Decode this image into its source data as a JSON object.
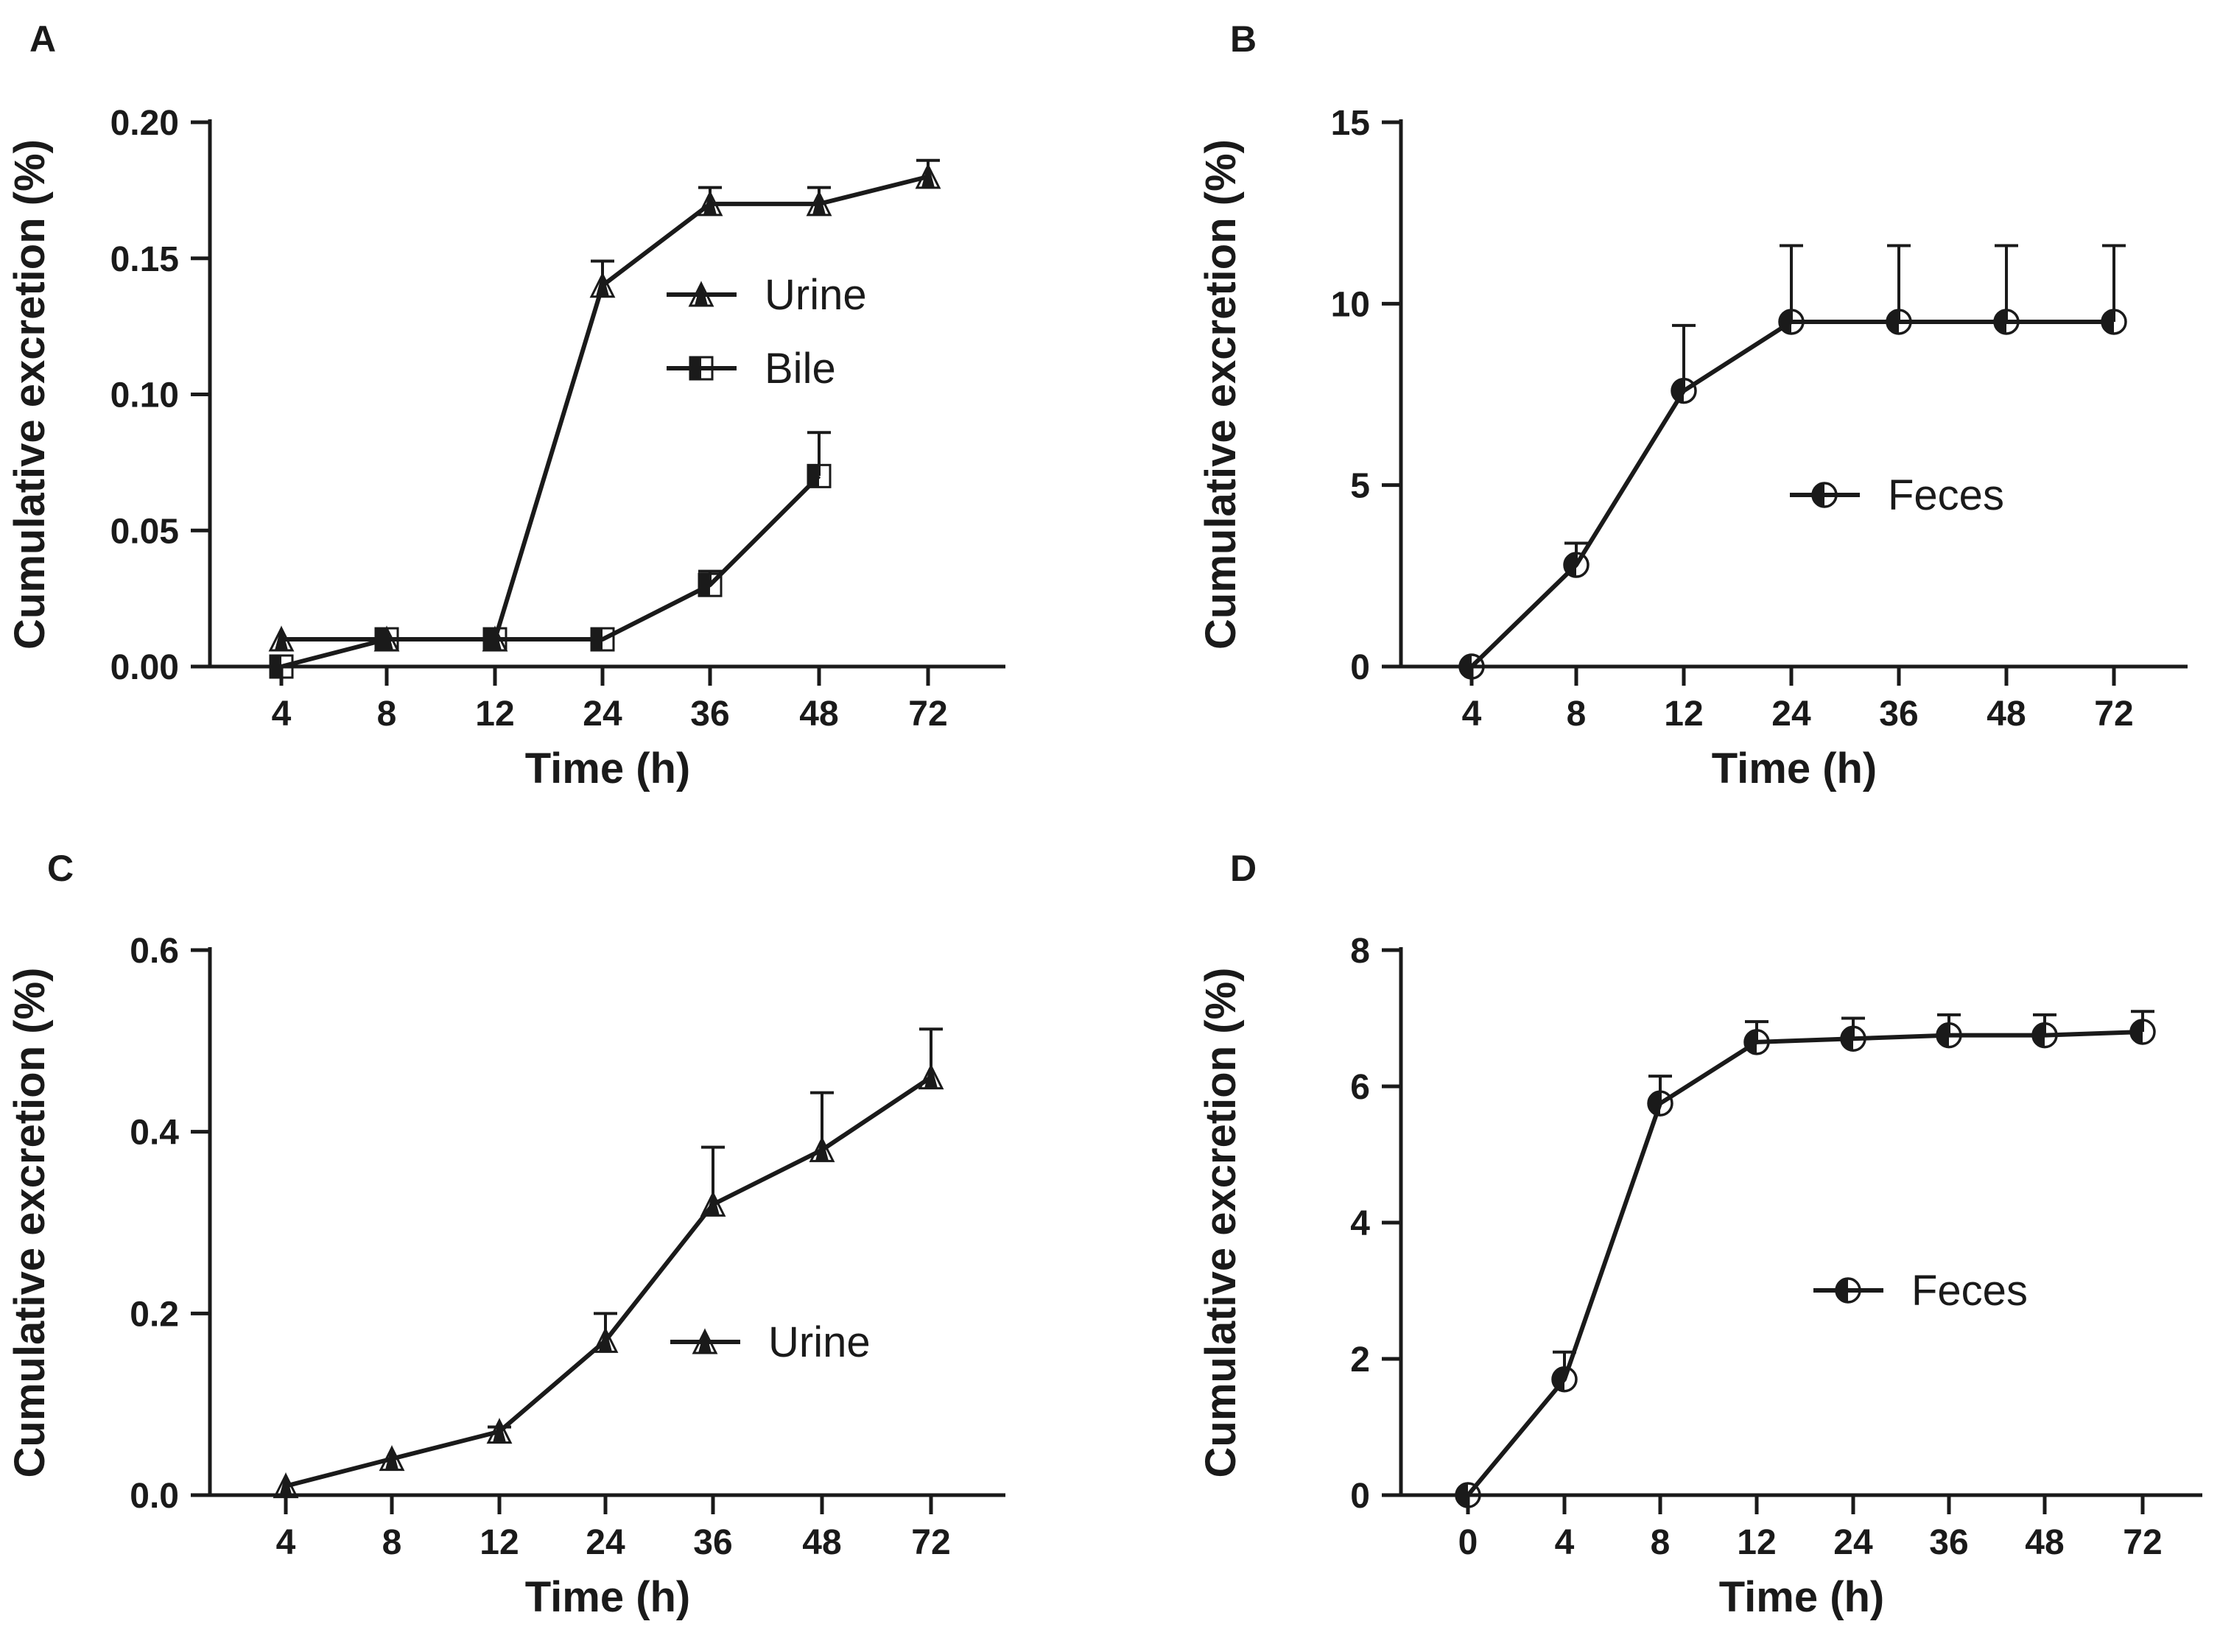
{
  "chart_data": [
    {
      "panel": "A",
      "type": "line",
      "xlabel": "Time (h)",
      "ylabel": "Cumulative excretion (%)",
      "categories": [
        "4",
        "8",
        "12",
        "24",
        "36",
        "48",
        "72"
      ],
      "ylim": [
        0,
        0.2
      ],
      "yticks": [
        "0.00",
        "0.05",
        "0.10",
        "0.15",
        "0.20"
      ],
      "legend_position": "center-right",
      "series": [
        {
          "name": "Urine",
          "marker": "triangle",
          "values": [
            0.01,
            0.01,
            0.01,
            0.14,
            0.17,
            0.17,
            0.18
          ],
          "errors": [
            0,
            0,
            0,
            0.009,
            0.006,
            0.006,
            0.006
          ]
        },
        {
          "name": "Bile",
          "marker": "square",
          "values": [
            0.0,
            0.01,
            0.01,
            0.01,
            0.03,
            0.07,
            null
          ],
          "errors": [
            0,
            0,
            0,
            0,
            0.005,
            0.016,
            null
          ]
        }
      ]
    },
    {
      "panel": "B",
      "type": "line",
      "xlabel": "Time (h)",
      "ylabel": "Cumulative excretion (%)",
      "categories": [
        "4",
        "8",
        "12",
        "24",
        "36",
        "48",
        "72"
      ],
      "ylim": [
        0,
        15
      ],
      "yticks": [
        "0",
        "5",
        "10",
        "15"
      ],
      "legend_position": "center-right",
      "series": [
        {
          "name": "Feces",
          "marker": "circle",
          "values": [
            0.0,
            2.8,
            7.6,
            9.5,
            9.5,
            9.5,
            9.5
          ],
          "errors": [
            0,
            0.6,
            1.8,
            2.1,
            2.1,
            2.1,
            2.1
          ]
        }
      ]
    },
    {
      "panel": "C",
      "type": "line",
      "xlabel": "Time (h)",
      "ylabel": "Cumulative excretion (%)",
      "categories": [
        "4",
        "8",
        "12",
        "24",
        "36",
        "48",
        "72"
      ],
      "ylim": [
        0,
        0.6
      ],
      "yticks": [
        "0.0",
        "0.2",
        "0.4",
        "0.6"
      ],
      "legend_position": "center-right",
      "series": [
        {
          "name": "Urine",
          "marker": "triangle",
          "values": [
            0.01,
            0.04,
            0.07,
            0.17,
            0.32,
            0.38,
            0.46
          ],
          "errors": [
            0,
            0,
            0.005,
            0.03,
            0.063,
            0.063,
            0.053
          ]
        }
      ]
    },
    {
      "panel": "D",
      "type": "line",
      "xlabel": "Time (h)",
      "ylabel": "Cumulative excretion (%)",
      "categories": [
        "0",
        "4",
        "8",
        "12",
        "24",
        "36",
        "48",
        "72"
      ],
      "ylim": [
        0,
        8
      ],
      "yticks": [
        "0",
        "2",
        "4",
        "6",
        "8"
      ],
      "legend_position": "center-right",
      "series": [
        {
          "name": "Feces",
          "marker": "circle",
          "values": [
            0.0,
            1.7,
            5.75,
            6.65,
            6.7,
            6.75,
            6.75,
            6.8
          ],
          "errors": [
            0,
            0.4,
            0.4,
            0.3,
            0.3,
            0.3,
            0.3,
            0.3
          ]
        }
      ]
    }
  ]
}
